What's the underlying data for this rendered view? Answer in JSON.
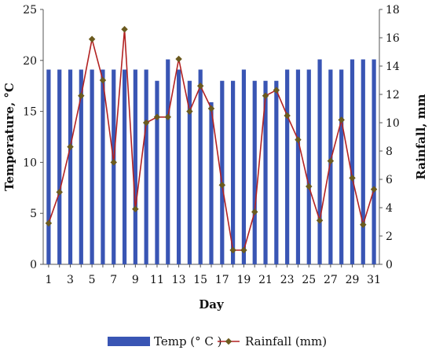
{
  "chart_data": {
    "type": "bar+line",
    "xlabel": "Day",
    "ylabel_left": "Temperature, °C",
    "ylabel_right": "Rainfall, mm",
    "x": [
      1,
      2,
      3,
      4,
      5,
      6,
      7,
      8,
      9,
      10,
      11,
      12,
      13,
      14,
      15,
      16,
      17,
      18,
      19,
      20,
      21,
      22,
      23,
      24,
      25,
      26,
      27,
      28,
      29,
      30,
      31
    ],
    "x_tick_labels": [
      "1",
      "3",
      "5",
      "7",
      "9",
      "11",
      "13",
      "15",
      "17",
      "19",
      "21",
      "23",
      "25",
      "27",
      "29",
      "31"
    ],
    "y_left_ticks": [
      "0",
      "5",
      "10",
      "15",
      "20",
      "25"
    ],
    "y_right_ticks": [
      "0",
      "2",
      "4",
      "6",
      "8",
      "10",
      "12",
      "14",
      "16",
      "18"
    ],
    "ylim_left": [
      0,
      25
    ],
    "ylim_right": [
      0,
      18
    ],
    "series": [
      {
        "name": "Temp (° C )",
        "kind": "bar",
        "axis": "left",
        "color": "#3955b4",
        "values": [
          19.1,
          19.1,
          19.1,
          19.1,
          19.1,
          19.1,
          19.1,
          19.1,
          19.1,
          19.1,
          18.0,
          20.1,
          19.1,
          18.0,
          19.1,
          15.9,
          18.0,
          18.0,
          19.1,
          18.0,
          18.0,
          18.0,
          19.1,
          19.1,
          19.1,
          20.1,
          19.1,
          19.1,
          20.1,
          20.1,
          20.1
        ]
      },
      {
        "name": "Rainfall (mm)",
        "kind": "line",
        "axis": "right",
        "color": "#b22222",
        "marker_color": "#6b5a1e",
        "values": [
          2.9,
          5.1,
          8.3,
          11.9,
          15.9,
          13.0,
          7.2,
          16.6,
          3.9,
          10.0,
          10.4,
          10.4,
          14.5,
          10.8,
          12.6,
          11.0,
          5.6,
          1.0,
          1.0,
          3.7,
          11.9,
          12.3,
          10.5,
          8.8,
          5.5,
          3.1,
          7.3,
          10.2,
          6.1,
          2.8,
          5.3
        ]
      }
    ],
    "legend": {
      "position": "bottom"
    },
    "grid": false
  }
}
